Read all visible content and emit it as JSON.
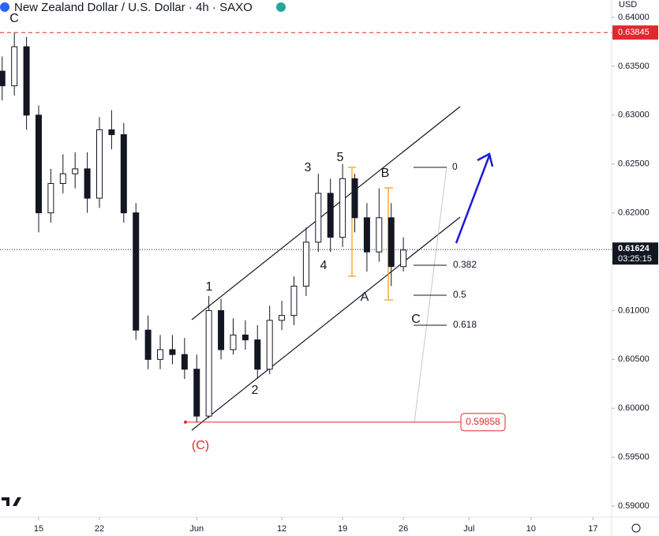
{
  "chart_data": {
    "type": "candlestick",
    "title": "New Zealand Dollar / U.S. Dollar · 4h · SAXO",
    "currency": "USD",
    "x": [
      -3,
      -2,
      -1,
      0,
      1,
      2,
      3,
      4,
      5,
      6,
      7,
      8,
      9,
      10,
      11,
      12,
      13,
      14,
      15,
      16,
      17,
      18,
      19,
      20,
      21,
      22,
      23,
      24,
      25,
      26,
      27,
      28,
      29,
      30
    ],
    "open": [
      0.6345,
      0.633,
      0.637,
      0.63,
      0.62,
      0.623,
      0.624,
      0.6245,
      0.6215,
      0.6285,
      0.628,
      0.62,
      0.608,
      0.605,
      0.606,
      0.6055,
      0.604,
      0.5992,
      0.61,
      0.606,
      0.6075,
      0.607,
      0.604,
      0.609,
      0.6095,
      0.6125,
      0.617,
      0.622,
      0.6175,
      0.6235,
      0.6195,
      0.616,
      0.6195,
      0.6145
    ],
    "high": [
      0.636,
      0.63845,
      0.638,
      0.631,
      0.6245,
      0.626,
      0.6262,
      0.6262,
      0.6298,
      0.6305,
      0.6292,
      0.621,
      0.6095,
      0.6075,
      0.6075,
      0.6072,
      0.6055,
      0.6115,
      0.6112,
      0.6092,
      0.609,
      0.6085,
      0.6105,
      0.611,
      0.6135,
      0.6185,
      0.624,
      0.6235,
      0.625,
      0.624,
      0.621,
      0.6225,
      0.621,
      0.6175
    ],
    "low": [
      0.6315,
      0.632,
      0.6285,
      0.618,
      0.619,
      0.622,
      0.6225,
      0.62,
      0.6205,
      0.6265,
      0.619,
      0.607,
      0.604,
      0.604,
      0.6045,
      0.603,
      0.59858,
      0.599,
      0.605,
      0.6055,
      0.606,
      0.603,
      0.6035,
      0.608,
      0.6085,
      0.6115,
      0.616,
      0.616,
      0.6165,
      0.618,
      0.614,
      0.615,
      0.6125,
      0.614
    ],
    "close": [
      0.633,
      0.637,
      0.63,
      0.62,
      0.623,
      0.624,
      0.6245,
      0.6215,
      0.6285,
      0.628,
      0.62,
      0.608,
      0.605,
      0.606,
      0.6055,
      0.604,
      0.5992,
      0.61,
      0.606,
      0.6075,
      0.607,
      0.604,
      0.609,
      0.6095,
      0.6125,
      0.617,
      0.622,
      0.6175,
      0.6235,
      0.6195,
      0.616,
      0.6195,
      0.6145,
      0.6162
    ],
    "xlim": [
      -3.18,
      47.13
    ],
    "xticks": [
      {
        "value": 0,
        "label": "15"
      },
      {
        "value": 5,
        "label": "22"
      },
      {
        "value": 13,
        "label": "Jun"
      },
      {
        "value": 20,
        "label": "12"
      },
      {
        "value": 25,
        "label": "19"
      },
      {
        "value": 30,
        "label": "26"
      },
      {
        "value": 35.4,
        "label": "Jul"
      },
      {
        "value": 40.5,
        "label": "10"
      },
      {
        "value": 45.6,
        "label": "17"
      }
    ],
    "ylim": [
      0.58887,
      0.64178
    ],
    "yticks": [
      {
        "value": 0.59,
        "label": "0.59000"
      },
      {
        "value": 0.595,
        "label": "0.59500"
      },
      {
        "value": 0.6,
        "label": "0.60000"
      },
      {
        "value": 0.605,
        "label": "0.60500"
      },
      {
        "value": 0.61,
        "label": "0.61000"
      },
      {
        "value": 0.615,
        "label": "0.61500"
      },
      {
        "value": 0.62,
        "label": "0.62000"
      },
      {
        "value": 0.625,
        "label": "0.62500"
      },
      {
        "value": 0.63,
        "label": "0.63000"
      },
      {
        "value": 0.635,
        "label": "0.63500"
      },
      {
        "value": 0.64,
        "label": "0.64000"
      }
    ],
    "top_level": 0.63845,
    "bottom_level": 0.59858,
    "last_price": 0.61624,
    "countdown": "03:25:15",
    "wave_labels": [
      "C",
      "1",
      "2",
      "3",
      "4",
      "5",
      "A",
      "B",
      "C",
      "(C)"
    ],
    "fib_labels": [
      "0",
      "0.382",
      "0.5",
      "0.618"
    ]
  }
}
